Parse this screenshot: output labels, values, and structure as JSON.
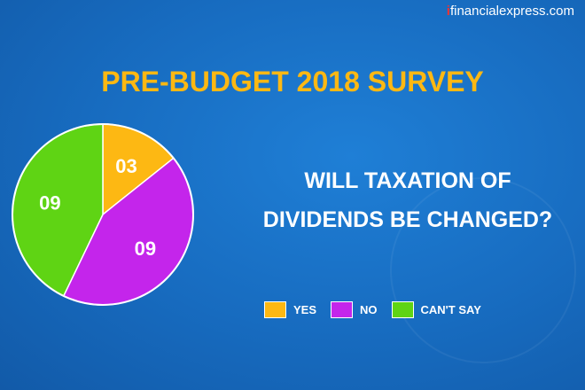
{
  "brand": {
    "prefix": "i",
    "text": "financialexpress.com"
  },
  "title": "PRE-BUDGET 2018 SURVEY",
  "question": {
    "line1": "WILL TAXATION OF",
    "line2": "DIVIDENDS BE CHANGED?"
  },
  "chart_data": {
    "type": "pie",
    "title": "PRE-BUDGET 2018 SURVEY",
    "categories": [
      "YES",
      "NO",
      "CAN'T SAY"
    ],
    "values": [
      3,
      9,
      9
    ],
    "data_labels": [
      "03",
      "09",
      "09"
    ],
    "colors": [
      "#fdb813",
      "#c425eb",
      "#5fd414"
    ],
    "legend_position": "bottom-right"
  }
}
